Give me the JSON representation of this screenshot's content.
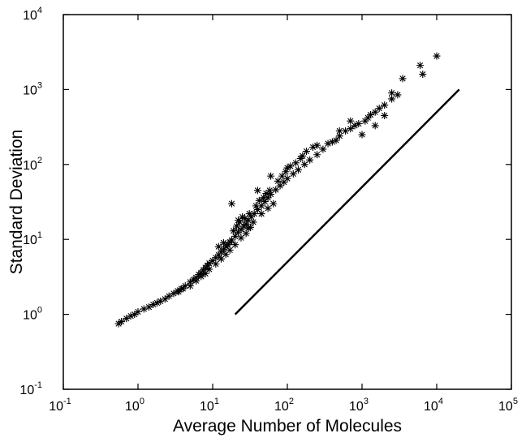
{
  "chart_data": {
    "type": "scatter",
    "title": "",
    "xlabel": "Average Number of Molecules",
    "ylabel": "Standard Deviation",
    "x_scale": "log",
    "y_scale": "log",
    "xlim": [
      0.1,
      100000
    ],
    "ylim": [
      0.1,
      10000
    ],
    "grid": false,
    "marker": "asterisk",
    "x_ticks": [
      {
        "base": "10",
        "exp": "-1",
        "value": 0.1
      },
      {
        "base": "10",
        "exp": "0",
        "value": 1
      },
      {
        "base": "10",
        "exp": "1",
        "value": 10
      },
      {
        "base": "10",
        "exp": "2",
        "value": 100
      },
      {
        "base": "10",
        "exp": "3",
        "value": 1000
      },
      {
        "base": "10",
        "exp": "4",
        "value": 10000
      },
      {
        "base": "10",
        "exp": "5",
        "value": 100000
      }
    ],
    "y_ticks": [
      {
        "base": "10",
        "exp": "-1",
        "value": 0.1
      },
      {
        "base": "10",
        "exp": "0",
        "value": 1
      },
      {
        "base": "10",
        "exp": "1",
        "value": 10
      },
      {
        "base": "10",
        "exp": "2",
        "value": 100
      },
      {
        "base": "10",
        "exp": "3",
        "value": 1000
      },
      {
        "base": "10",
        "exp": "4",
        "value": 10000
      }
    ],
    "series": [
      {
        "kind": "scatter",
        "points": [
          [
            0.55,
            0.75
          ],
          [
            0.6,
            0.8
          ],
          [
            0.7,
            0.88
          ],
          [
            0.8,
            0.95
          ],
          [
            0.9,
            1.0
          ],
          [
            1.0,
            1.08
          ],
          [
            1.2,
            1.18
          ],
          [
            1.4,
            1.25
          ],
          [
            1.6,
            1.35
          ],
          [
            1.8,
            1.42
          ],
          [
            2.0,
            1.5
          ],
          [
            2.3,
            1.6
          ],
          [
            2.6,
            1.75
          ],
          [
            3.0,
            1.9
          ],
          [
            3.4,
            2.05
          ],
          [
            3.8,
            2.2
          ],
          [
            4.3,
            2.4
          ],
          [
            5.0,
            2.7
          ],
          [
            5.5,
            2.9
          ],
          [
            6.0,
            3.1
          ],
          [
            6.5,
            3.4
          ],
          [
            7.0,
            3.6
          ],
          [
            7.5,
            3.9
          ],
          [
            8.0,
            4.2
          ],
          [
            8.5,
            4.5
          ],
          [
            9.0,
            4.8
          ],
          [
            10,
            5.2
          ],
          [
            11,
            5.7
          ],
          [
            12,
            6.2
          ],
          [
            13,
            6.8
          ],
          [
            14,
            7.3
          ],
          [
            15,
            8.0
          ],
          [
            16,
            8.5
          ],
          [
            17,
            9.2
          ],
          [
            18,
            9.8
          ],
          [
            20,
            11
          ],
          [
            22,
            12.5
          ],
          [
            24,
            13.5
          ],
          [
            26,
            15
          ],
          [
            28,
            16
          ],
          [
            30,
            18
          ],
          [
            33,
            20
          ],
          [
            36,
            22
          ],
          [
            40,
            25
          ],
          [
            45,
            28
          ],
          [
            50,
            32
          ],
          [
            55,
            36
          ],
          [
            60,
            40
          ],
          [
            70,
            46
          ],
          [
            80,
            52
          ],
          [
            90,
            58
          ],
          [
            100,
            65
          ],
          [
            120,
            75
          ],
          [
            140,
            85
          ],
          [
            170,
            100
          ],
          [
            200,
            115
          ],
          [
            250,
            135
          ],
          [
            300,
            160
          ],
          [
            400,
            200
          ],
          [
            500,
            240
          ],
          [
            600,
            280
          ],
          [
            700,
            300
          ],
          [
            900,
            350
          ],
          [
            1200,
            420
          ],
          [
            1500,
            500
          ],
          [
            2000,
            620
          ],
          [
            2500,
            750
          ],
          [
            3000,
            850
          ],
          [
            18,
            30
          ],
          [
            40,
            45
          ],
          [
            60,
            70
          ],
          [
            100,
            90
          ],
          [
            150,
            120
          ],
          [
            250,
            180
          ],
          [
            500,
            280
          ],
          [
            700,
            380
          ],
          [
            1000,
            250
          ],
          [
            1500,
            330
          ],
          [
            2000,
            450
          ],
          [
            2500,
            900
          ],
          [
            3500,
            1400
          ],
          [
            6000,
            2100
          ],
          [
            6500,
            1600
          ],
          [
            10000,
            2800
          ],
          [
            12,
            8
          ],
          [
            14,
            9
          ],
          [
            22,
            18
          ],
          [
            25,
            20
          ],
          [
            30,
            14
          ],
          [
            35,
            17
          ],
          [
            45,
            22
          ],
          [
            55,
            26
          ],
          [
            65,
            30
          ],
          [
            8,
            3.5
          ],
          [
            9,
            4.0
          ],
          [
            11,
            4.7
          ],
          [
            13,
            5.5
          ],
          [
            15,
            6.3
          ],
          [
            17,
            7.2
          ],
          [
            20,
            8.5
          ],
          [
            24,
            10.5
          ],
          [
            28,
            12
          ],
          [
            32,
            14.5
          ],
          [
            5,
            2.4
          ],
          [
            6,
            2.8
          ],
          [
            7,
            3.2
          ],
          [
            4,
            2.2
          ],
          [
            3.5,
            2.0
          ],
          [
            19,
            13
          ],
          [
            21,
            15
          ],
          [
            23,
            17
          ],
          [
            27,
            19
          ],
          [
            31,
            22
          ],
          [
            38,
            28
          ],
          [
            42,
            33
          ],
          [
            48,
            36
          ],
          [
            52,
            41
          ],
          [
            58,
            45
          ],
          [
            75,
            60
          ],
          [
            85,
            70
          ],
          [
            95,
            80
          ],
          [
            110,
            95
          ],
          [
            130,
            105
          ],
          [
            160,
            130
          ],
          [
            180,
            150
          ],
          [
            220,
            170
          ],
          [
            350,
            190
          ],
          [
            450,
            210
          ],
          [
            800,
            330
          ],
          [
            1100,
            380
          ],
          [
            1300,
            460
          ],
          [
            1700,
            560
          ]
        ]
      },
      {
        "kind": "line",
        "points": [
          [
            20,
            1
          ],
          [
            20000,
            1000
          ]
        ]
      }
    ]
  }
}
